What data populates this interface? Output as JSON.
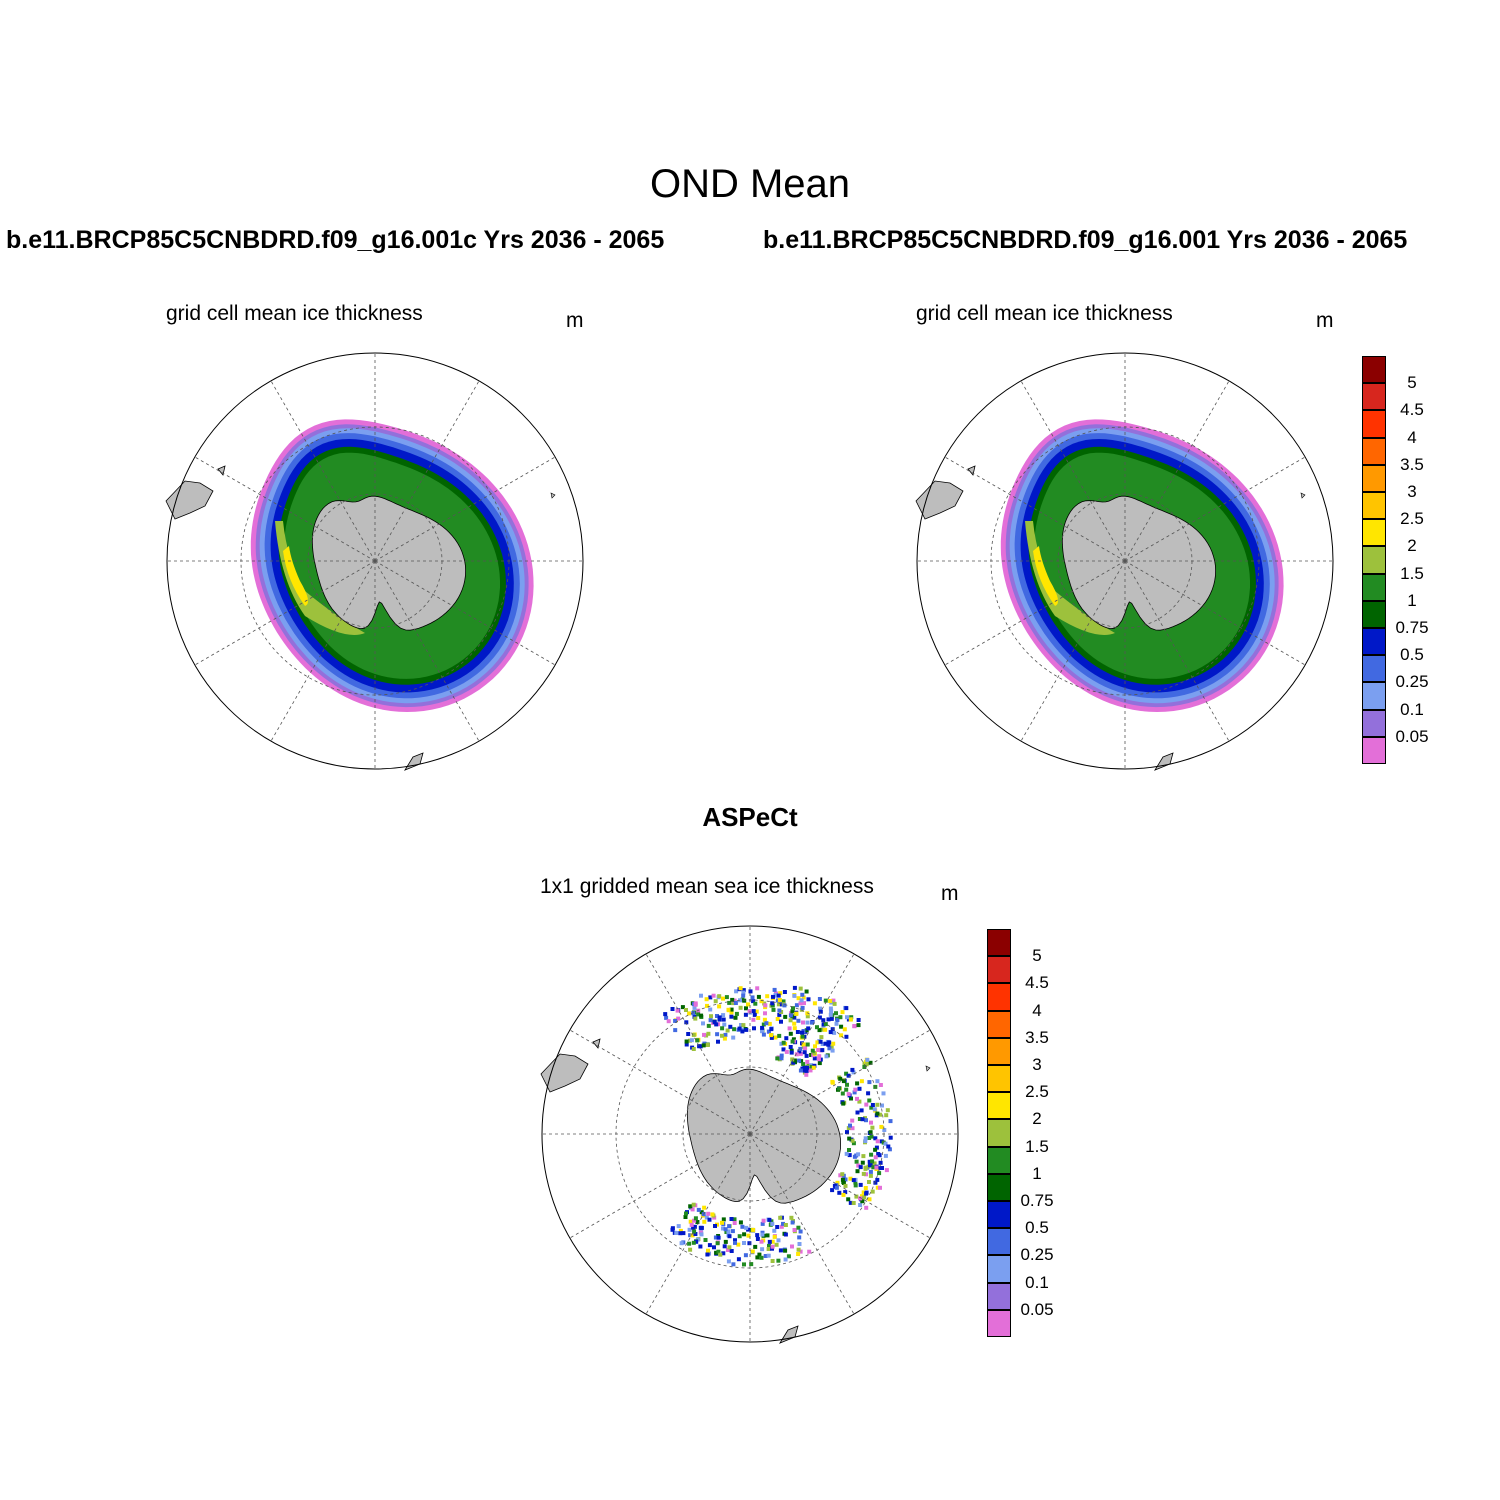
{
  "main_title": "OND Mean",
  "panels": [
    {
      "case_title": "b.e11.BRCP85C5CNBDRD.f09_g16.001c  Yrs 2036 - 2065",
      "subtitle": "grid cell mean ice thickness",
      "units": "m"
    },
    {
      "case_title": "b.e11.BRCP85C5CNBDRD.f09_g16.001  Yrs 2036 - 2065",
      "subtitle": "grid cell mean ice thickness",
      "units": "m"
    }
  ],
  "obs_panel": {
    "title": "ASPeCt",
    "subtitle": "1x1 gridded mean sea ice thickness",
    "units": "m"
  },
  "colorbar": {
    "levels": [
      "5",
      "4.5",
      "4",
      "3.5",
      "3",
      "2.5",
      "2",
      "1.5",
      "1",
      "0.75",
      "0.5",
      "0.25",
      "0.1",
      "0.05"
    ],
    "colors": [
      "#8b0000",
      "#d7261e",
      "#ff3300",
      "#ff6600",
      "#ff9900",
      "#ffc400",
      "#ffe600",
      "#9dc13c",
      "#228b22",
      "#006400",
      "#0018c8",
      "#4169e1",
      "#7b9ff0",
      "#9370db",
      "#e36fd8"
    ]
  },
  "map_colors": {
    "land": "#bdbdbd",
    "ocean": "#ffffff"
  }
}
